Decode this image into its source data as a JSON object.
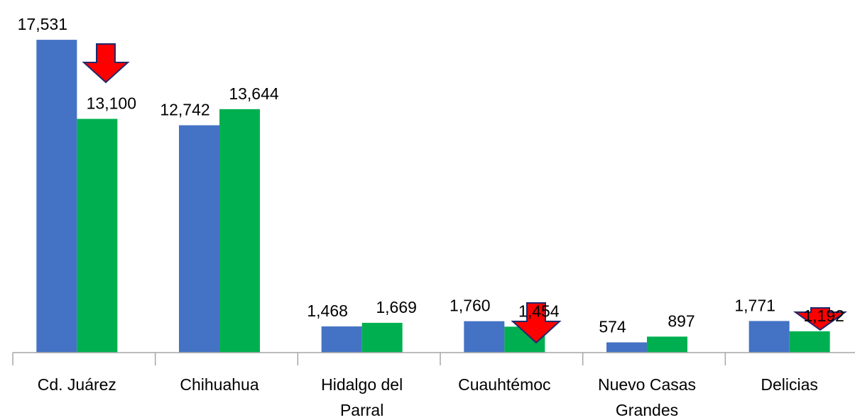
{
  "chart_data": {
    "type": "bar",
    "categories": [
      "Cd. Juárez",
      "Chihuahua",
      "Hidalgo del Parral",
      "Cuauhtémoc",
      "Nuevo Casas Grandes",
      "Delicias"
    ],
    "series": [
      {
        "color": "#4472c4",
        "values": [
          17531,
          12742,
          1468,
          1760,
          574,
          1771
        ],
        "value_labels": [
          "17,531",
          "12,742",
          "1,468",
          "1,760",
          "574",
          "1,771"
        ]
      },
      {
        "color": "#00b050",
        "values": [
          13100,
          13644,
          1669,
          1454,
          897,
          1192
        ],
        "value_labels": [
          "13,100",
          "13,644",
          "1,669",
          "1,454",
          "897",
          "1,192"
        ]
      }
    ],
    "ylim": [
      0,
      20000
    ]
  }
}
